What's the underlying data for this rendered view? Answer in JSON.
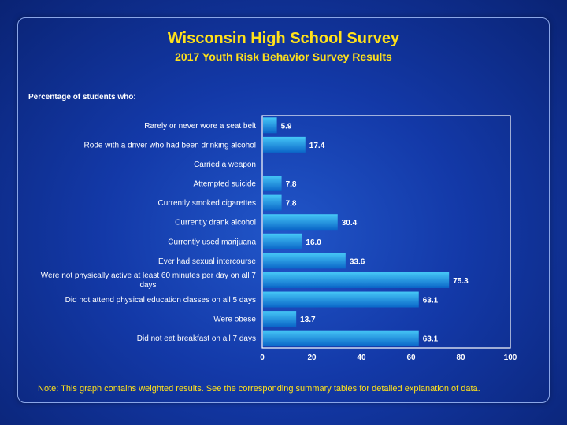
{
  "chart_data": {
    "type": "bar",
    "orientation": "horizontal",
    "title": "Wisconsin High School Survey",
    "subtitle": "2017 Youth Risk Behavior Survey Results",
    "ylabel": "Percentage of students who:",
    "categories": [
      "Rarely or never wore a seat belt",
      "Rode with a driver who had been drinking alcohol",
      "Carried a weapon",
      "Attempted suicide",
      "Currently smoked cigarettes",
      "Currently drank alcohol",
      "Currently used marijuana",
      "Ever had sexual intercourse",
      [
        "Were not physically active at least 60 minutes per day on all 7",
        "days"
      ],
      "Did not attend physical education classes on all 5 days",
      "Were obese",
      "Did not eat breakfast on all 7 days"
    ],
    "values": [
      5.9,
      17.4,
      null,
      7.8,
      7.8,
      30.4,
      16.0,
      33.6,
      75.3,
      63.1,
      13.7,
      63.1
    ],
    "value_labels": [
      "5.9",
      "17.4",
      "",
      "7.8",
      "7.8",
      "30.4",
      "16.0",
      "33.6",
      "75.3",
      "63.1",
      "13.7",
      "63.1"
    ],
    "xlim": [
      0,
      100
    ],
    "xticks": [
      "0",
      "20",
      "40",
      "60",
      "80",
      "100"
    ],
    "grid": false,
    "colors": {
      "bar_top": "#3fc0f5",
      "bar_bottom": "#0b6fd0",
      "title": "#ffe11a",
      "text": "#ffffff"
    }
  },
  "footnote": "Note: This graph contains weighted results. See the corresponding summary tables for detailed explanation of data."
}
